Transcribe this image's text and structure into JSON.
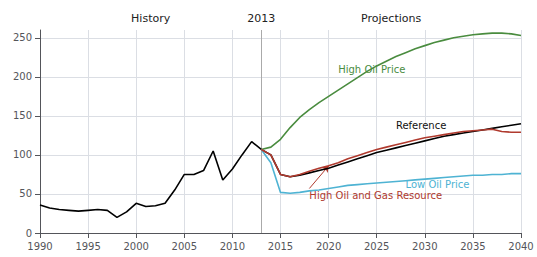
{
  "chart_data": {
    "type": "line",
    "headers": [
      "History",
      "2013",
      "Projections"
    ],
    "vline_x": 2013,
    "xlim": [
      1990,
      2040
    ],
    "xticks": [
      1990,
      1995,
      2000,
      2005,
      2010,
      2015,
      2020,
      2025,
      2030,
      2035,
      2040
    ],
    "ylim": [
      0,
      260
    ],
    "yticks": [
      0,
      50,
      100,
      150,
      200,
      250
    ],
    "grid": true,
    "series": [
      {
        "name": "History",
        "color": "#000000",
        "x": [
          1990,
          1991,
          1992,
          1993,
          1994,
          1995,
          1996,
          1997,
          1998,
          1999,
          2000,
          2001,
          2002,
          2003,
          2004,
          2005,
          2006,
          2007,
          2008,
          2009,
          2010,
          2011,
          2012,
          2013
        ],
        "values": [
          36,
          32,
          30,
          29,
          28,
          29,
          30,
          29,
          20,
          27,
          38,
          34,
          35,
          38,
          55,
          75,
          75,
          80,
          105,
          68,
          82,
          100,
          117,
          107
        ]
      },
      {
        "name": "Reference",
        "color": "#000000",
        "x": [
          2013,
          2014,
          2015,
          2016,
          2017,
          2018,
          2019,
          2020,
          2021,
          2022,
          2023,
          2024,
          2025,
          2026,
          2027,
          2028,
          2029,
          2030,
          2031,
          2032,
          2033,
          2034,
          2035,
          2036,
          2037,
          2038,
          2039,
          2040
        ],
        "values": [
          107,
          100,
          75,
          72,
          74,
          77,
          80,
          83,
          87,
          91,
          95,
          99,
          103,
          106,
          109,
          112,
          115,
          118,
          121,
          124,
          126,
          128,
          130,
          132,
          134,
          136,
          138,
          140
        ]
      },
      {
        "name": "High Oil Price",
        "color": "#4a8c3f",
        "x": [
          2013,
          2014,
          2015,
          2016,
          2017,
          2018,
          2019,
          2020,
          2021,
          2022,
          2023,
          2024,
          2025,
          2026,
          2027,
          2028,
          2029,
          2030,
          2031,
          2032,
          2033,
          2034,
          2035,
          2036,
          2037,
          2038,
          2039,
          2040
        ],
        "values": [
          107,
          110,
          120,
          135,
          148,
          158,
          167,
          175,
          183,
          191,
          199,
          207,
          214,
          220,
          226,
          231,
          236,
          240,
          244,
          247,
          250,
          252,
          254,
          255,
          256,
          256,
          255,
          253
        ]
      },
      {
        "name": "Low Oil Price",
        "color": "#4eb3d3",
        "x": [
          2013,
          2014,
          2015,
          2016,
          2017,
          2018,
          2019,
          2020,
          2021,
          2022,
          2023,
          2024,
          2025,
          2026,
          2027,
          2028,
          2029,
          2030,
          2031,
          2032,
          2033,
          2034,
          2035,
          2036,
          2037,
          2038,
          2039,
          2040
        ],
        "values": [
          107,
          90,
          52,
          51,
          52,
          54,
          55,
          57,
          59,
          61,
          62,
          63,
          64,
          65,
          66,
          67,
          68,
          69,
          70,
          71,
          72,
          73,
          74,
          74,
          75,
          75,
          76,
          76
        ]
      },
      {
        "name": "High Oil and Gas Resource",
        "color": "#b03a2e",
        "x": [
          2013,
          2014,
          2015,
          2016,
          2017,
          2018,
          2019,
          2020,
          2021,
          2022,
          2023,
          2024,
          2025,
          2026,
          2027,
          2028,
          2029,
          2030,
          2031,
          2032,
          2033,
          2034,
          2035,
          2036,
          2037,
          2038,
          2039,
          2040
        ],
        "values": [
          107,
          100,
          75,
          72,
          75,
          79,
          83,
          86,
          90,
          95,
          99,
          103,
          107,
          110,
          113,
          116,
          119,
          122,
          124,
          126,
          128,
          130,
          131,
          132,
          133,
          130,
          129,
          129
        ]
      }
    ],
    "annotations": [
      {
        "text": "High Oil Price",
        "x": 2021,
        "y": 210,
        "color": "#4a8c3f"
      },
      {
        "text": "Reference",
        "x": 2027,
        "y": 138,
        "color": "#111111"
      },
      {
        "text": "Low Oil Price",
        "x": 2028,
        "y": 62,
        "color": "#4eb3d3"
      },
      {
        "text": "High Oil and Gas Resource",
        "x": 2018,
        "y": 57,
        "color": "#b03a2e",
        "arrow_x": 2020,
        "arrow_y": 86
      }
    ]
  }
}
